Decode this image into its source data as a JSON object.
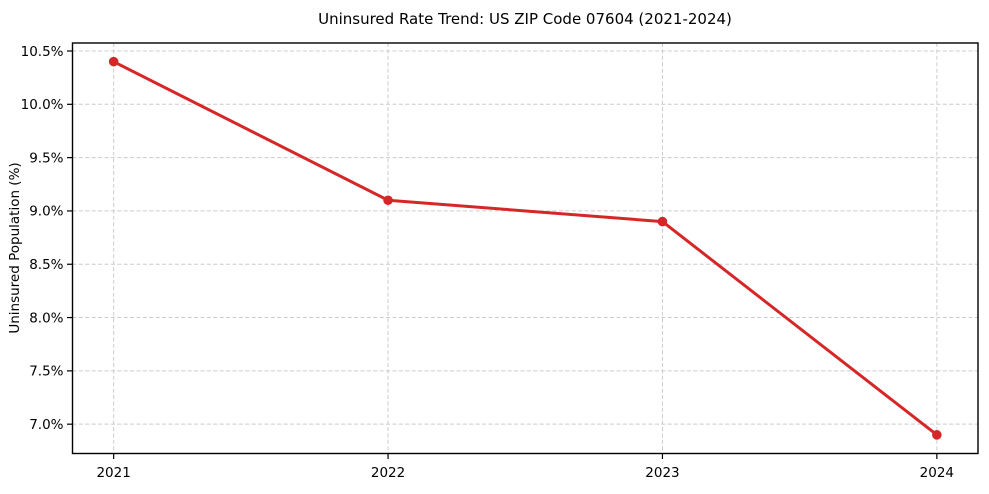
{
  "figure": {
    "background_color": "#ffffff",
    "text_color": "#000000",
    "grid_color": "#cccccc",
    "spine_color": "#000000"
  },
  "chart_data": {
    "type": "line",
    "title": "Uninsured Rate Trend: US ZIP Code 07604 (2021-2024)",
    "xlabel": "",
    "ylabel": "Uninsured Population (%)",
    "x": [
      2021,
      2022,
      2023,
      2024
    ],
    "values": [
      10.4,
      9.1,
      8.9,
      6.9
    ],
    "x_tick_labels": [
      "2021",
      "2022",
      "2023",
      "2024"
    ],
    "y_ticks": [
      7.0,
      7.5,
      8.0,
      8.5,
      9.0,
      9.5,
      10.0,
      10.5
    ],
    "y_tick_labels": [
      "7.0%",
      "7.5%",
      "8.0%",
      "8.5%",
      "9.0%",
      "9.5%",
      "10.0%",
      "10.5%"
    ],
    "xlim": [
      2020.85,
      2024.15
    ],
    "ylim": [
      6.725,
      10.575
    ],
    "grid": true,
    "grid_style": "dashed",
    "legend_position": "none",
    "line_color": "#d62728",
    "marker": "circle"
  }
}
